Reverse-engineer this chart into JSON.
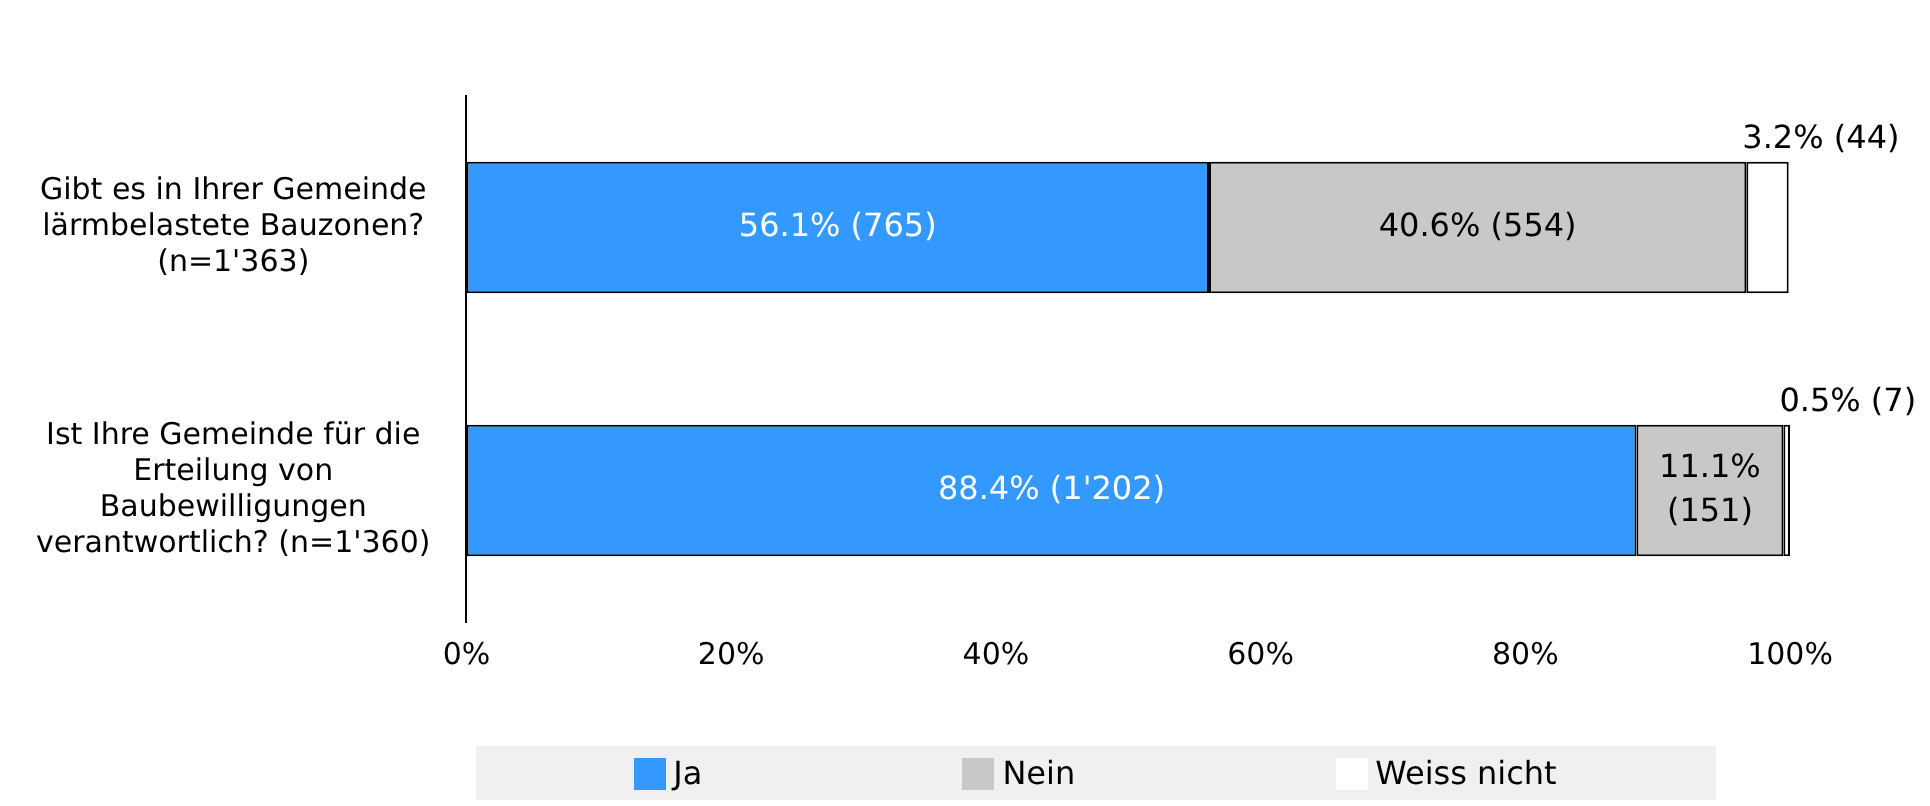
{
  "chart_data": {
    "type": "bar",
    "orientation": "horizontal",
    "stacked": true,
    "categories": [
      "Gibt es in Ihrer Gemeinde lärmbelastete Bauzonen? (n=1'363)",
      "Ist Ihre Gemeinde für die Erteilung von Baubewilligungen verantwortlich? (n=1'360)"
    ],
    "series": [
      {
        "name": "Ja",
        "color": "#3399ff",
        "values": [
          56.1,
          88.4
        ],
        "value_labels": [
          "56.1% (765)",
          "88.4% (1'202)"
        ]
      },
      {
        "name": "Nein",
        "color": "#c8c8c8",
        "values": [
          40.6,
          11.1
        ],
        "value_labels": [
          "40.6% (554)",
          "11.1% (151)"
        ]
      },
      {
        "name": "Weiss nicht",
        "color": "#ffffff",
        "values": [
          3.2,
          0.5
        ],
        "value_labels": [
          "3.2% (44)",
          "0.5% (7)"
        ]
      }
    ],
    "xlim": [
      0,
      100
    ],
    "xticks": [
      {
        "value": 0,
        "label": "0%"
      },
      {
        "value": 20,
        "label": "20%"
      },
      {
        "value": 40,
        "label": "40%"
      },
      {
        "value": 60,
        "label": "60%"
      },
      {
        "value": 80,
        "label": "80%"
      },
      {
        "value": 100,
        "label": "100%"
      }
    ],
    "grid": false,
    "legend": "bottom"
  }
}
